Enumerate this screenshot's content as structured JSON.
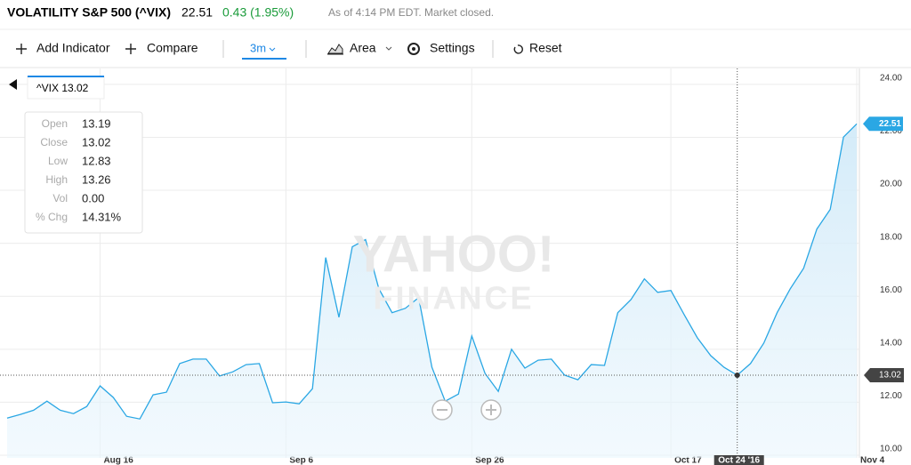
{
  "header": {
    "title": "VOLATILITY S&P 500 (^VIX)",
    "change": "0.43 (1.95%)",
    "status": "As of 4:14 PM EDT. Market closed."
  },
  "toolbar": {
    "add_indicator": "Add Indicator",
    "compare": "Compare",
    "range": "3m",
    "chart_type": "Area",
    "settings": "Settings",
    "reset": "Reset"
  },
  "watermark": {
    "brand": "YAHOO!",
    "section": "FINANCE"
  },
  "tooltip": {
    "rows": [
      [
        "Open",
        "13.19"
      ],
      [
        "Close",
        "13.02"
      ],
      [
        "Low",
        "12.83"
      ],
      [
        "High",
        "13.26"
      ],
      [
        "Vol",
        "0.00"
      ],
      [
        "% Chg",
        "14.31%"
      ]
    ]
  },
  "chart_data": {
    "type": "area",
    "categories": [
      null,
      null,
      null,
      null,
      null,
      null,
      null,
      "Aug 16",
      null,
      null,
      null,
      null,
      null,
      null,
      null,
      null,
      null,
      null,
      null,
      null,
      null,
      "Sep 6",
      null,
      null,
      null,
      null,
      null,
      null,
      null,
      null,
      null,
      null,
      null,
      null,
      null,
      "Sep 26",
      null,
      null,
      null,
      null,
      null,
      null,
      null,
      null,
      null,
      null,
      null,
      null,
      null,
      null,
      "Oct 17",
      null,
      null,
      null,
      null,
      "Oct 24 '16",
      null,
      null,
      null,
      null,
      null,
      null,
      null,
      null,
      "Nov 4"
    ],
    "series": [
      {
        "name": "^VIX",
        "color": "#2aa7e4",
        "values": [
          11.4,
          11.54,
          11.7,
          12.04,
          11.7,
          11.57,
          11.84,
          12.62,
          12.18,
          11.47,
          11.37,
          12.28,
          12.38,
          13.46,
          13.63,
          13.63,
          12.99,
          13.15,
          13.42,
          13.46,
          11.98,
          12.01,
          11.94,
          12.51,
          17.46,
          15.21,
          17.87,
          18.14,
          16.29,
          15.38,
          15.55,
          15.95,
          13.32,
          12.04,
          12.31,
          14.5,
          13.09,
          12.41,
          14.0,
          13.29,
          13.59,
          13.63,
          13.02,
          12.85,
          13.42,
          13.39,
          15.38,
          15.88,
          16.66,
          16.15,
          16.22,
          15.31,
          14.43,
          13.76,
          13.32,
          13.02,
          13.46,
          14.23,
          15.38,
          16.29,
          17.06,
          18.54,
          19.28,
          22.01,
          22.51
        ]
      }
    ],
    "crosshair_index": 55,
    "ylim": [
      9.9,
      24.6
    ],
    "yticks": [
      {
        "value": 10,
        "label": "10.00"
      },
      {
        "value": 12,
        "label": "12.00"
      },
      {
        "value": 14,
        "label": "14.00"
      },
      {
        "value": 16,
        "label": "16.00"
      },
      {
        "value": 18,
        "label": "18.00"
      },
      {
        "value": 20,
        "label": "20.00"
      },
      {
        "value": 22,
        "label": "22.00"
      },
      {
        "value": 24,
        "label": "24.00"
      }
    ],
    "grid": true
  }
}
